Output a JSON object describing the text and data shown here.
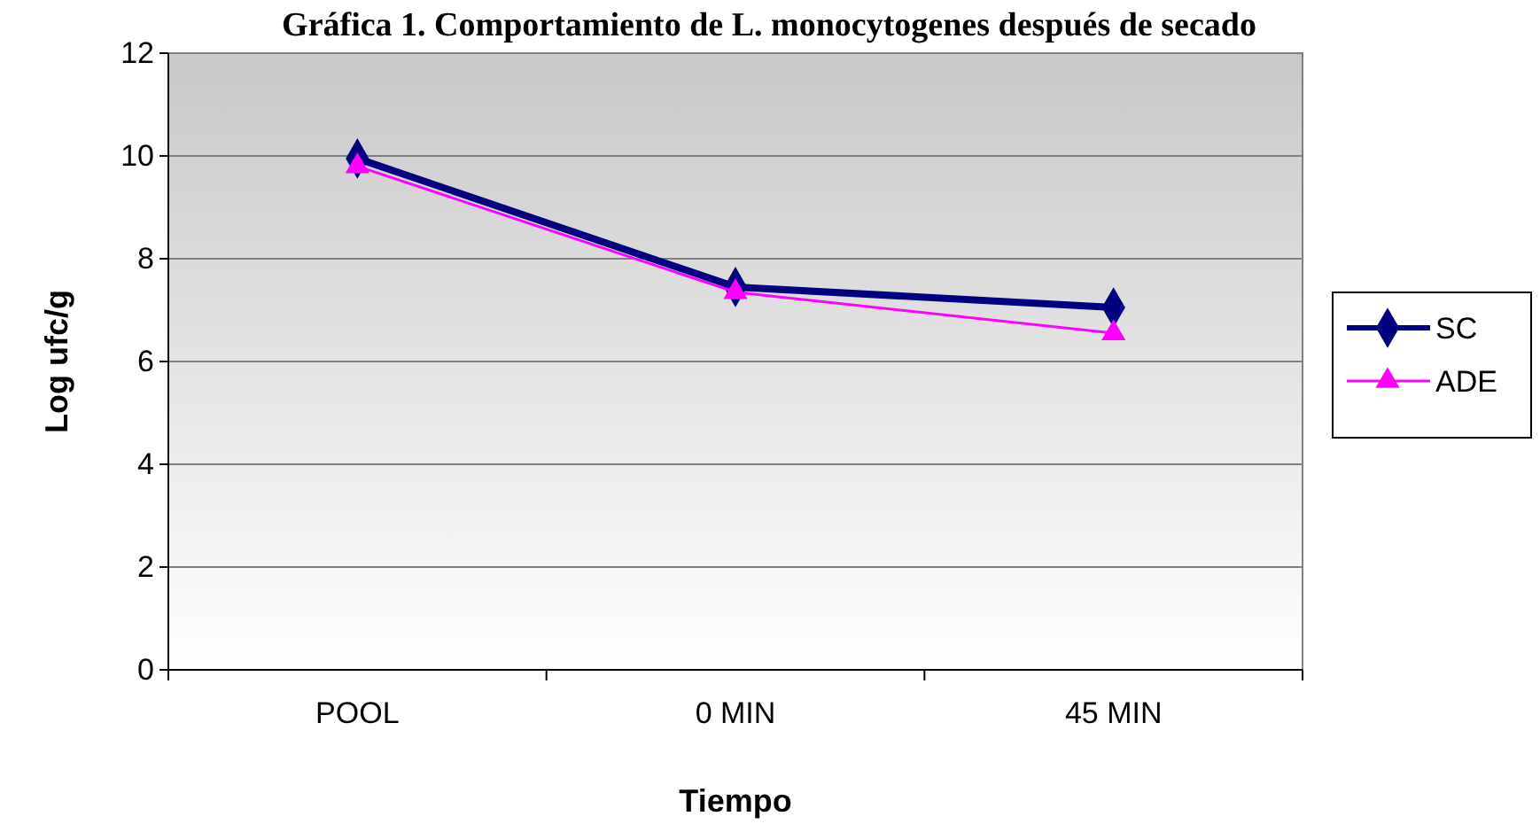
{
  "chart_data": {
    "type": "line",
    "title": "Gráfica 1. Comportamiento de L. monocytogenes después de secado",
    "xlabel": "Tiempo",
    "ylabel": "Log ufc/g",
    "categories": [
      "POOL",
      "0 MIN",
      "45 MIN"
    ],
    "series": [
      {
        "name": "SC",
        "color": "#000080",
        "values": [
          9.95,
          7.45,
          7.05
        ],
        "marker": "diamond"
      },
      {
        "name": "ADE",
        "color": "#ff00ff",
        "values": [
          9.8,
          7.35,
          6.55
        ],
        "marker": "triangle"
      }
    ],
    "ylim": [
      0,
      12
    ],
    "yticks": [
      0,
      2,
      4,
      6,
      8,
      10,
      12
    ],
    "grid": "y",
    "legend": "right"
  }
}
